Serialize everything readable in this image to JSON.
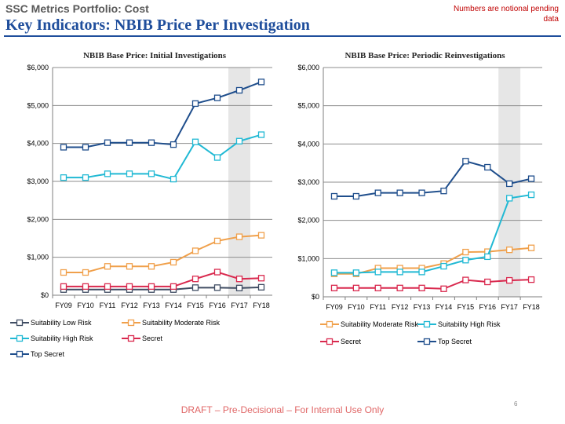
{
  "header": {
    "supertitle": "SSC Metrics Portfolio: Cost",
    "title": "Key Indicators: NBIB Price Per Investigation",
    "notice": "Numbers are notional pending data"
  },
  "footer": {
    "text": "DRAFT – Pre-Decisional – For Internal Use Only",
    "page_number": "6"
  },
  "colors": {
    "title": "#1f4e9c",
    "notice": "#c00000",
    "footer": "#e06666",
    "highlight_band": "#e6e6e6"
  },
  "chart_data": [
    {
      "type": "line",
      "title": "NBIB Base Price: Initial Investigations",
      "categories": [
        "FY09",
        "FY10",
        "FY11",
        "FY12",
        "FY13",
        "FY14",
        "FY15",
        "FY16",
        "FY17",
        "FY18"
      ],
      "ylim": [
        0,
        6000
      ],
      "yticks": [
        0,
        1000,
        2000,
        3000,
        4000,
        5000,
        6000
      ],
      "ytick_labels": [
        "$0",
        "$1,000",
        "$2,000",
        "$3,000",
        "$4,000",
        "$5,000",
        "$6,000"
      ],
      "grid": "horizontal",
      "highlight_category": "FY17",
      "legend_position": "bottom",
      "series": [
        {
          "name": "Suitability Low Risk",
          "color": "#404d63",
          "values": [
            150,
            150,
            150,
            150,
            150,
            150,
            200,
            200,
            190,
            210
          ]
        },
        {
          "name": "Suitability Moderate Risk",
          "color": "#f0a04b",
          "values": [
            600,
            600,
            760,
            760,
            760,
            870,
            1170,
            1430,
            1540,
            1580
          ]
        },
        {
          "name": "Suitability High Risk",
          "color": "#21b9d4",
          "values": [
            3100,
            3100,
            3200,
            3200,
            3200,
            3060,
            4040,
            3630,
            4060,
            4230
          ]
        },
        {
          "name": "Secret",
          "color": "#d9294e",
          "values": [
            230,
            230,
            230,
            230,
            230,
            230,
            430,
            610,
            430,
            450
          ]
        },
        {
          "name": "Top Secret",
          "color": "#1f4e8c",
          "values": [
            3900,
            3900,
            4020,
            4020,
            4020,
            3970,
            5050,
            5200,
            5400,
            5620
          ]
        }
      ]
    },
    {
      "type": "line",
      "title": "NBIB Base Price: Periodic Reinvestigations",
      "categories": [
        "FY09",
        "FY10",
        "FY11",
        "FY12",
        "FY13",
        "FY14",
        "FY15",
        "FY16",
        "FY17",
        "FY18"
      ],
      "ylim": [
        0,
        6000
      ],
      "yticks": [
        0,
        1000,
        2000,
        3000,
        4000,
        5000,
        6000
      ],
      "ytick_labels": [
        "$0",
        "$1,000",
        "$2,000",
        "$3,000",
        "$4,000",
        "$5,000",
        "$6,000"
      ],
      "grid": "horizontal",
      "highlight_category": "FY17",
      "legend_position": "bottom",
      "series": [
        {
          "name": "Suitability Moderate Risk",
          "color": "#f0a04b",
          "values": [
            600,
            600,
            750,
            750,
            750,
            870,
            1170,
            1180,
            1230,
            1280
          ]
        },
        {
          "name": "Suitability High Risk",
          "color": "#21b9d4",
          "values": [
            630,
            630,
            650,
            650,
            650,
            800,
            960,
            1050,
            2580,
            2670
          ]
        },
        {
          "name": "Secret",
          "color": "#d9294e",
          "values": [
            230,
            230,
            230,
            230,
            230,
            210,
            440,
            390,
            430,
            450
          ]
        },
        {
          "name": "Top Secret",
          "color": "#1f4e8c",
          "values": [
            2630,
            2630,
            2720,
            2720,
            2720,
            2770,
            3550,
            3390,
            2960,
            3090
          ]
        }
      ]
    }
  ]
}
